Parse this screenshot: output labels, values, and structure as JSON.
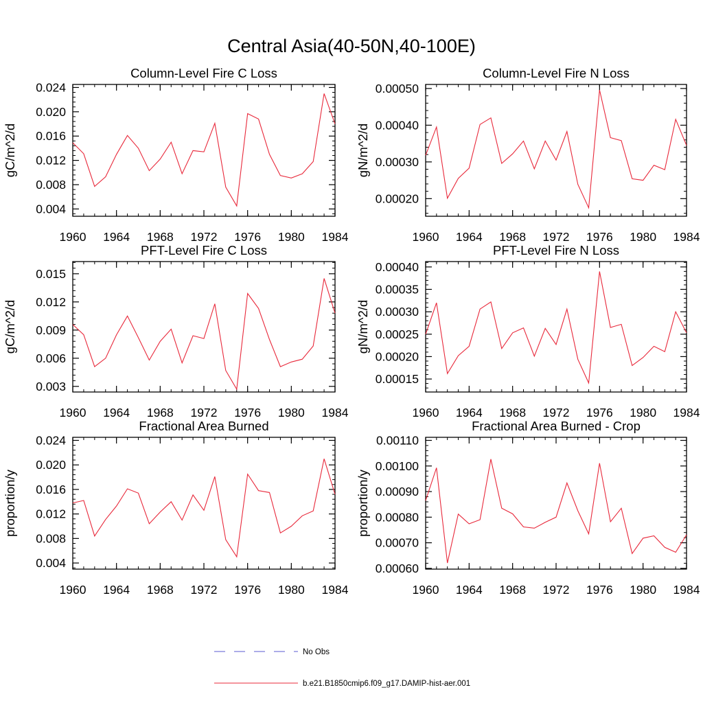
{
  "figure": {
    "title": "Central Asia(40-50N,40-100E)"
  },
  "legend": {
    "items": [
      {
        "label": "No Obs",
        "color": "#5a5ad0",
        "style": "dashed"
      },
      {
        "label": "b.e21.B1850cmip6.f09_g17.DAMIP-hist-aer.001",
        "color": "#e8283a",
        "style": "solid"
      }
    ]
  },
  "chart_data": [
    {
      "type": "line",
      "title": "Column-Level Fire C Loss",
      "ylabel": "gC/m^2/d",
      "xlim": [
        1960,
        1984
      ],
      "ylim": [
        0.0028,
        0.0245
      ],
      "xticks": [
        "1960",
        "1964",
        "1968",
        "1972",
        "1976",
        "1980",
        "1984"
      ],
      "yticks": [
        "0.004",
        "0.008",
        "0.012",
        "0.016",
        "0.020",
        "0.024"
      ],
      "grid": false,
      "x": [
        1960,
        1961,
        1962,
        1963,
        1964,
        1965,
        1966,
        1967,
        1968,
        1969,
        1970,
        1971,
        1972,
        1973,
        1974,
        1975,
        1976,
        1977,
        1978,
        1979,
        1980,
        1981,
        1982,
        1983,
        1984
      ],
      "series": [
        {
          "name": "b.e21.B1850cmip6.f09_g17.DAMIP-hist-aer.001",
          "color": "#e8283a",
          "values": [
            0.0149,
            0.0131,
            0.0077,
            0.0093,
            0.013,
            0.0161,
            0.014,
            0.0103,
            0.0122,
            0.015,
            0.0098,
            0.0136,
            0.0134,
            0.0181,
            0.0076,
            0.0045,
            0.0197,
            0.0188,
            0.013,
            0.0095,
            0.0091,
            0.0098,
            0.0118,
            0.023,
            0.018
          ]
        }
      ]
    },
    {
      "type": "line",
      "title": "Column-Level Fire N Loss",
      "ylabel": "gN/m^2/d",
      "xlim": [
        1960,
        1984
      ],
      "ylim": [
        0.000152,
        0.000511
      ],
      "xticks": [
        "1960",
        "1964",
        "1968",
        "1972",
        "1976",
        "1980",
        "1984"
      ],
      "yticks": [
        "0.00020",
        "0.00030",
        "0.00040",
        "0.00050"
      ],
      "grid": false,
      "x": [
        1960,
        1961,
        1962,
        1963,
        1964,
        1965,
        1966,
        1967,
        1968,
        1969,
        1970,
        1971,
        1972,
        1973,
        1974,
        1975,
        1976,
        1977,
        1978,
        1979,
        1980,
        1981,
        1982,
        1983,
        1984
      ],
      "series": [
        {
          "name": "b.e21.B1850cmip6.f09_g17.DAMIP-hist-aer.001",
          "color": "#e8283a",
          "values": [
            0.000318,
            0.000395,
            0.000201,
            0.000255,
            0.000283,
            0.000402,
            0.00042,
            0.000296,
            0.000322,
            0.000357,
            0.000281,
            0.000357,
            0.000305,
            0.000383,
            0.000239,
            0.000175,
            0.000496,
            0.000366,
            0.000358,
            0.000254,
            0.00025,
            0.000291,
            0.000279,
            0.000416,
            0.000345
          ]
        }
      ]
    },
    {
      "type": "line",
      "title": "PFT-Level Fire C Loss",
      "ylabel": "gC/m^2/d",
      "xlim": [
        1960,
        1984
      ],
      "ylim": [
        0.0024,
        0.0163
      ],
      "xticks": [
        "1960",
        "1964",
        "1968",
        "1972",
        "1976",
        "1980",
        "1984"
      ],
      "yticks": [
        "0.003",
        "0.006",
        "0.009",
        "0.012",
        "0.015"
      ],
      "grid": false,
      "x": [
        1960,
        1961,
        1962,
        1963,
        1964,
        1965,
        1966,
        1967,
        1968,
        1969,
        1970,
        1971,
        1972,
        1973,
        1974,
        1975,
        1976,
        1977,
        1978,
        1979,
        1980,
        1981,
        1982,
        1983,
        1984
      ],
      "series": [
        {
          "name": "b.e21.B1850cmip6.f09_g17.DAMIP-hist-aer.001",
          "color": "#e8283a",
          "values": [
            0.0096,
            0.0085,
            0.0051,
            0.006,
            0.0085,
            0.0105,
            0.0082,
            0.0058,
            0.0078,
            0.0091,
            0.0055,
            0.0084,
            0.0081,
            0.0118,
            0.0047,
            0.0027,
            0.0129,
            0.0113,
            0.008,
            0.0051,
            0.0056,
            0.0059,
            0.0073,
            0.0145,
            0.0108
          ]
        }
      ]
    },
    {
      "type": "line",
      "title": "PFT-Level Fire N Loss",
      "ylabel": "gN/m^2/d",
      "xlim": [
        1960,
        1984
      ],
      "ylim": [
        0.000121,
        0.000412
      ],
      "xticks": [
        "1960",
        "1964",
        "1968",
        "1972",
        "1976",
        "1980",
        "1984"
      ],
      "yticks": [
        "0.00015",
        "0.00020",
        "0.00025",
        "0.00030",
        "0.00035",
        "0.00040"
      ],
      "grid": false,
      "x": [
        1960,
        1961,
        1962,
        1963,
        1964,
        1965,
        1966,
        1967,
        1968,
        1969,
        1970,
        1971,
        1972,
        1973,
        1974,
        1975,
        1976,
        1977,
        1978,
        1979,
        1980,
        1981,
        1982,
        1983,
        1984
      ],
      "series": [
        {
          "name": "b.e21.B1850cmip6.f09_g17.DAMIP-hist-aer.001",
          "color": "#e8283a",
          "values": [
            0.00025,
            0.00032,
            0.000162,
            0.000202,
            0.000223,
            0.000306,
            0.000322,
            0.000218,
            0.000253,
            0.000264,
            0.000201,
            0.000263,
            0.000227,
            0.000306,
            0.000194,
            0.000141,
            0.00039,
            0.000265,
            0.000272,
            0.00018,
            0.000198,
            0.000223,
            0.000211,
            0.0003,
            0.000253
          ]
        }
      ]
    },
    {
      "type": "line",
      "title": "Fractional Area Burned",
      "ylabel": "proportion/y",
      "xlim": [
        1960,
        1984
      ],
      "ylim": [
        0.003,
        0.0245
      ],
      "xticks": [
        "1960",
        "1964",
        "1968",
        "1972",
        "1976",
        "1980",
        "1984"
      ],
      "yticks": [
        "0.004",
        "0.008",
        "0.012",
        "0.016",
        "0.020",
        "0.024"
      ],
      "grid": false,
      "x": [
        1960,
        1961,
        1962,
        1963,
        1964,
        1965,
        1966,
        1967,
        1968,
        1969,
        1970,
        1971,
        1972,
        1973,
        1974,
        1975,
        1976,
        1977,
        1978,
        1979,
        1980,
        1981,
        1982,
        1983,
        1984
      ],
      "series": [
        {
          "name": "b.e21.B1850cmip6.f09_g17.DAMIP-hist-aer.001",
          "color": "#e8283a",
          "values": [
            0.0138,
            0.0142,
            0.0084,
            0.0111,
            0.0133,
            0.0161,
            0.0154,
            0.0104,
            0.0123,
            0.014,
            0.011,
            0.0151,
            0.0126,
            0.0181,
            0.0078,
            0.005,
            0.0185,
            0.0158,
            0.0155,
            0.0089,
            0.01,
            0.0117,
            0.0125,
            0.021,
            0.0152
          ]
        }
      ]
    },
    {
      "type": "line",
      "title": "Fractional Area Burned - Crop",
      "ylabel": "proportion/y",
      "xlim": [
        1960,
        1984
      ],
      "ylim": [
        0.000597,
        0.001112
      ],
      "xticks": [
        "1960",
        "1964",
        "1968",
        "1972",
        "1976",
        "1980",
        "1984"
      ],
      "yticks": [
        "0.00060",
        "0.00070",
        "0.00080",
        "0.00090",
        "0.00100",
        "0.00110"
      ],
      "grid": false,
      "x": [
        1960,
        1961,
        1962,
        1963,
        1964,
        1965,
        1966,
        1967,
        1968,
        1969,
        1970,
        1971,
        1972,
        1973,
        1974,
        1975,
        1976,
        1977,
        1978,
        1979,
        1980,
        1981,
        1982,
        1983,
        1984
      ],
      "series": [
        {
          "name": "b.e21.B1850cmip6.f09_g17.DAMIP-hist-aer.001",
          "color": "#e8283a",
          "values": [
            0.000865,
            0.000993,
            0.000621,
            0.000812,
            0.000774,
            0.00079,
            0.001027,
            0.000835,
            0.000813,
            0.000762,
            0.000757,
            0.00078,
            0.0008,
            0.000934,
            0.000825,
            0.000735,
            0.001011,
            0.000782,
            0.000835,
            0.000658,
            0.000718,
            0.000727,
            0.000682,
            0.000663,
            0.000731
          ]
        }
      ]
    }
  ]
}
